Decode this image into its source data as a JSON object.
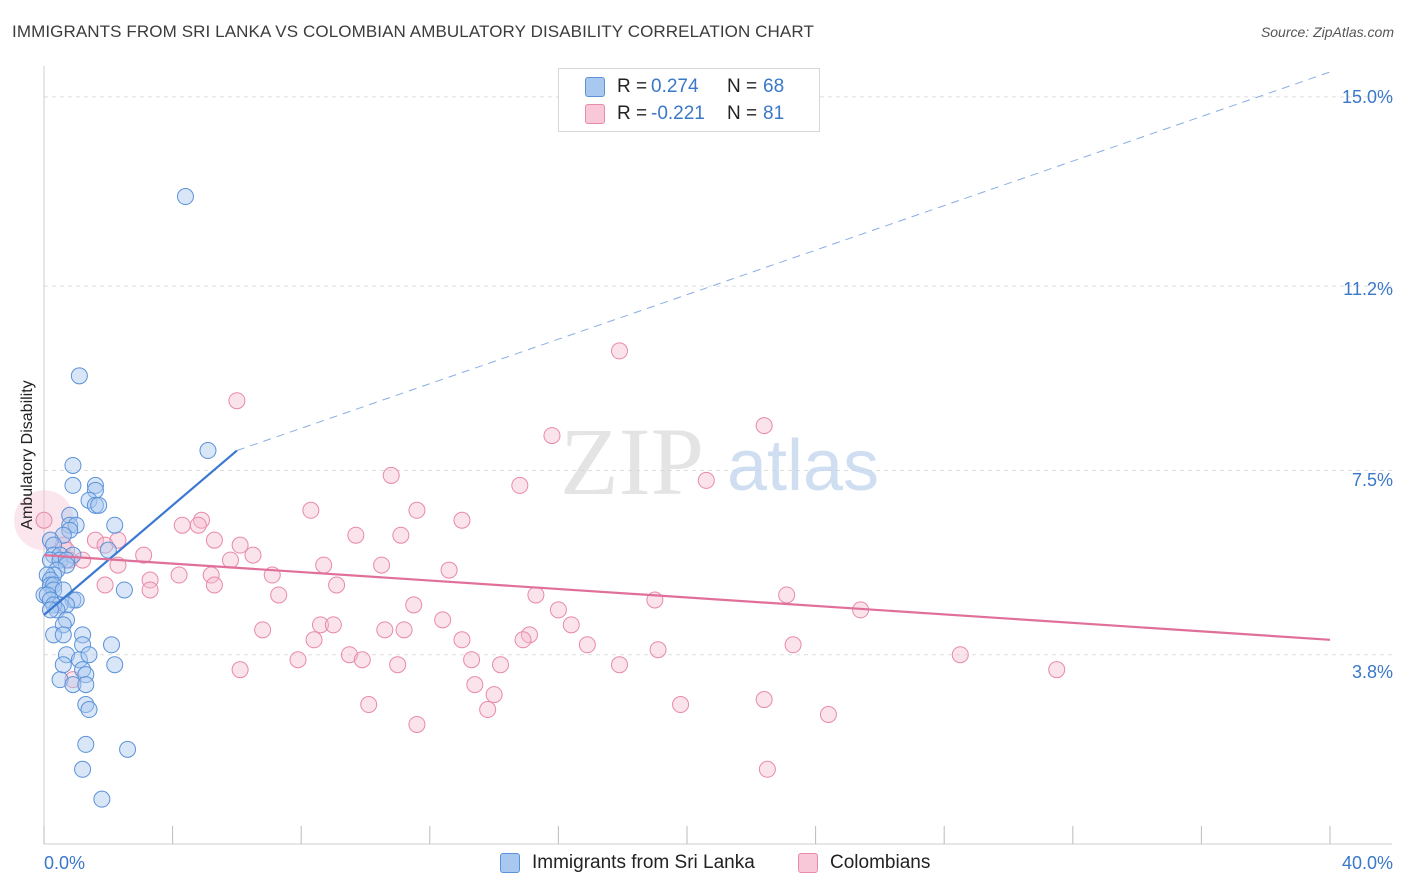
{
  "title": "IMMIGRANTS FROM SRI LANKA VS COLOMBIAN AMBULATORY DISABILITY CORRELATION CHART",
  "source": "Source: ZipAtlas.com",
  "watermark": {
    "zip": "ZIP",
    "atlas": "atlas"
  },
  "legend": {
    "rows": [
      {
        "r_label": "R =",
        "r_value": "0.274",
        "n_label": "N =",
        "n_value": "68"
      },
      {
        "r_label": "R =",
        "r_value": "-0.221",
        "n_label": "N =",
        "n_value": "81"
      }
    ]
  },
  "colors": {
    "blue_fill": "#a8c8f0",
    "blue_stroke": "#5b92d8",
    "blue_line": "#3a78d2",
    "pink_fill": "#f5b8cc",
    "pink_stroke": "#e88aa8",
    "pink_line": "#e0709a",
    "grid": "#dddddd",
    "tick_text": "#3a78c9"
  },
  "chart_data": {
    "type": "scatter",
    "title": "IMMIGRANTS FROM SRI LANKA VS COLOMBIAN AMBULATORY DISABILITY CORRELATION CHART",
    "xlabel": "",
    "ylabel": "Ambulatory Disability",
    "xlim": [
      0,
      40
    ],
    "ylim": [
      0,
      15.5
    ],
    "x_tick_labels": [
      "0.0%",
      "40.0%"
    ],
    "y_ticks": [
      3.8,
      7.5,
      11.2,
      15.0
    ],
    "y_tick_labels": [
      "3.8%",
      "7.5%",
      "11.2%",
      "15.0%"
    ],
    "series": [
      {
        "name": "Immigrants from Sri Lanka",
        "color": "#a8c8f0",
        "r": 0.274,
        "n": 68,
        "trend": {
          "x0": 0.0,
          "y0": 4.6,
          "x1": 6.0,
          "y1": 7.9,
          "dashed_to": {
            "x": 40.0,
            "y": 15.5
          }
        },
        "points": [
          [
            4.4,
            13.0
          ],
          [
            1.1,
            9.4
          ],
          [
            5.1,
            7.9
          ],
          [
            0.9,
            7.6
          ],
          [
            0.9,
            7.2
          ],
          [
            1.6,
            7.2
          ],
          [
            1.6,
            7.1
          ],
          [
            1.4,
            6.9
          ],
          [
            1.6,
            6.8
          ],
          [
            1.7,
            6.8
          ],
          [
            0.8,
            6.6
          ],
          [
            0.8,
            6.4
          ],
          [
            1.0,
            6.4
          ],
          [
            2.2,
            6.4
          ],
          [
            0.8,
            6.3
          ],
          [
            0.6,
            6.2
          ],
          [
            0.2,
            6.1
          ],
          [
            0.3,
            6.0
          ],
          [
            2.0,
            5.9
          ],
          [
            0.3,
            5.8
          ],
          [
            0.5,
            5.8
          ],
          [
            0.9,
            5.8
          ],
          [
            0.2,
            5.7
          ],
          [
            0.5,
            5.7
          ],
          [
            0.7,
            5.7
          ],
          [
            0.7,
            5.6
          ],
          [
            0.4,
            5.5
          ],
          [
            0.3,
            5.4
          ],
          [
            0.1,
            5.4
          ],
          [
            0.2,
            5.3
          ],
          [
            0.2,
            5.2
          ],
          [
            0.3,
            5.2
          ],
          [
            0.3,
            5.1
          ],
          [
            0.6,
            5.1
          ],
          [
            2.5,
            5.1
          ],
          [
            0.0,
            5.0
          ],
          [
            0.1,
            5.0
          ],
          [
            0.2,
            4.9
          ],
          [
            0.9,
            4.9
          ],
          [
            1.0,
            4.9
          ],
          [
            0.5,
            4.8
          ],
          [
            0.7,
            4.8
          ],
          [
            0.3,
            4.8
          ],
          [
            0.4,
            4.7
          ],
          [
            0.2,
            4.7
          ],
          [
            0.7,
            4.5
          ],
          [
            0.6,
            4.4
          ],
          [
            0.3,
            4.2
          ],
          [
            0.6,
            4.2
          ],
          [
            1.2,
            4.2
          ],
          [
            1.2,
            4.0
          ],
          [
            2.1,
            4.0
          ],
          [
            0.7,
            3.8
          ],
          [
            1.1,
            3.7
          ],
          [
            1.4,
            3.8
          ],
          [
            2.2,
            3.6
          ],
          [
            1.2,
            3.5
          ],
          [
            1.3,
            3.4
          ],
          [
            0.5,
            3.3
          ],
          [
            0.9,
            3.2
          ],
          [
            1.3,
            3.2
          ],
          [
            1.3,
            2.8
          ],
          [
            1.4,
            2.7
          ],
          [
            1.3,
            2.0
          ],
          [
            2.6,
            1.9
          ],
          [
            1.2,
            1.5
          ],
          [
            1.8,
            0.9
          ],
          [
            0.6,
            3.6
          ]
        ]
      },
      {
        "name": "Colombians",
        "color": "#f5b8cc",
        "r": -0.221,
        "n": 81,
        "trend": {
          "x0": 0.0,
          "y0": 5.8,
          "x1": 40.0,
          "y1": 4.1
        },
        "points": [
          [
            17.9,
            9.9
          ],
          [
            6.0,
            8.9
          ],
          [
            22.4,
            8.4
          ],
          [
            15.8,
            8.2
          ],
          [
            10.8,
            7.4
          ],
          [
            20.6,
            7.3
          ],
          [
            14.8,
            7.2
          ],
          [
            0.0,
            6.5
          ],
          [
            8.3,
            6.7
          ],
          [
            11.6,
            6.7
          ],
          [
            13.0,
            6.5
          ],
          [
            4.9,
            6.5
          ],
          [
            4.8,
            6.4
          ],
          [
            4.3,
            6.4
          ],
          [
            9.7,
            6.2
          ],
          [
            2.3,
            6.1
          ],
          [
            1.6,
            6.1
          ],
          [
            11.1,
            6.2
          ],
          [
            5.3,
            6.1
          ],
          [
            6.1,
            6.0
          ],
          [
            0.6,
            6.0
          ],
          [
            1.9,
            6.0
          ],
          [
            0.7,
            5.9
          ],
          [
            6.5,
            5.8
          ],
          [
            3.1,
            5.8
          ],
          [
            0.8,
            5.7
          ],
          [
            1.2,
            5.7
          ],
          [
            5.8,
            5.7
          ],
          [
            2.3,
            5.6
          ],
          [
            10.5,
            5.6
          ],
          [
            8.7,
            5.6
          ],
          [
            12.6,
            5.5
          ],
          [
            4.2,
            5.4
          ],
          [
            7.1,
            5.4
          ],
          [
            5.2,
            5.4
          ],
          [
            3.3,
            5.3
          ],
          [
            9.1,
            5.2
          ],
          [
            5.3,
            5.2
          ],
          [
            1.9,
            5.2
          ],
          [
            3.3,
            5.1
          ],
          [
            7.3,
            5.0
          ],
          [
            15.3,
            5.0
          ],
          [
            23.1,
            5.0
          ],
          [
            19.0,
            4.9
          ],
          [
            11.5,
            4.8
          ],
          [
            25.4,
            4.7
          ],
          [
            16.0,
            4.7
          ],
          [
            12.4,
            4.5
          ],
          [
            8.6,
            4.4
          ],
          [
            16.4,
            4.4
          ],
          [
            9.0,
            4.4
          ],
          [
            11.2,
            4.3
          ],
          [
            10.6,
            4.3
          ],
          [
            6.8,
            4.3
          ],
          [
            15.1,
            4.2
          ],
          [
            13.0,
            4.1
          ],
          [
            16.9,
            4.0
          ],
          [
            14.9,
            4.1
          ],
          [
            8.4,
            4.1
          ],
          [
            23.3,
            4.0
          ],
          [
            9.5,
            3.8
          ],
          [
            9.9,
            3.7
          ],
          [
            14.2,
            3.6
          ],
          [
            11.0,
            3.6
          ],
          [
            13.3,
            3.7
          ],
          [
            17.9,
            3.6
          ],
          [
            28.5,
            3.8
          ],
          [
            7.9,
            3.7
          ],
          [
            19.1,
            3.9
          ],
          [
            6.1,
            3.5
          ],
          [
            13.4,
            3.2
          ],
          [
            31.5,
            3.5
          ],
          [
            0.9,
            3.3
          ],
          [
            10.1,
            2.8
          ],
          [
            14.0,
            3.0
          ],
          [
            13.8,
            2.7
          ],
          [
            11.6,
            2.4
          ],
          [
            22.4,
            2.9
          ],
          [
            24.4,
            2.6
          ],
          [
            19.8,
            2.8
          ],
          [
            22.5,
            1.5
          ]
        ]
      }
    ]
  },
  "bottom_legend": [
    "Immigrants from Sri Lanka",
    "Colombians"
  ]
}
